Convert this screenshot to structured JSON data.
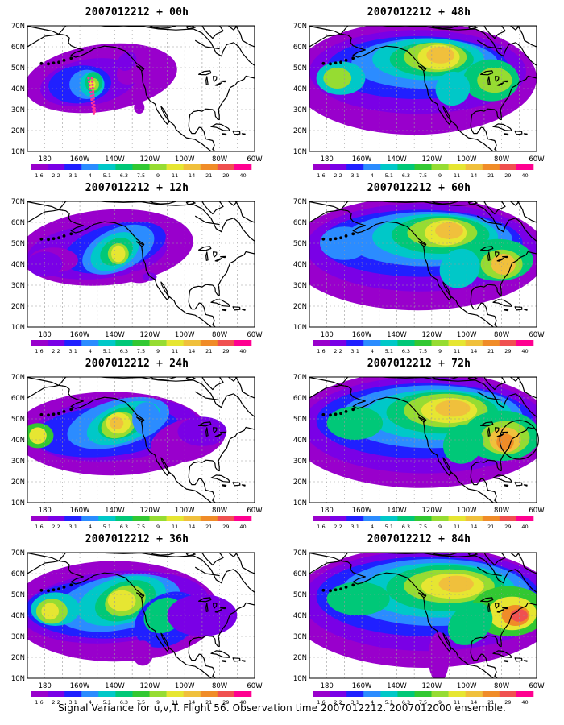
{
  "footer_caption": "Signal Variance for u,v,T. Flight 56. Observation time 2007012212. 2007012000 ensemble.",
  "lat_labels": [
    "70N",
    "60N",
    "50N",
    "40N",
    "30N",
    "20N",
    "10N"
  ],
  "lon_labels": [
    "180",
    "160W",
    "140W",
    "120W",
    "100W",
    "80W",
    "60W"
  ],
  "colorbar": {
    "labels": [
      "1.6",
      "2.2",
      "3.1",
      "4",
      "5.1",
      "6.3",
      "7.5",
      "9",
      "11",
      "14",
      "21",
      "29",
      "40"
    ],
    "colors": [
      "#9900cc",
      "#7a00e6",
      "#2020ff",
      "#2b8cff",
      "#00c8c8",
      "#00c878",
      "#32c832",
      "#96dc32",
      "#e6e632",
      "#f0c03c",
      "#f08c28",
      "#f05050",
      "#ff0090"
    ]
  },
  "panels": [
    {
      "id": "p00",
      "title": "2007012212 + 00h",
      "lead_hours": 0
    },
    {
      "id": "p48",
      "title": "2007012212 + 48h",
      "lead_hours": 48
    },
    {
      "id": "p12",
      "title": "2007012212 + 12h",
      "lead_hours": 12
    },
    {
      "id": "p60",
      "title": "2007012212 + 60h",
      "lead_hours": 60
    },
    {
      "id": "p24",
      "title": "2007012212 + 24h",
      "lead_hours": 24
    },
    {
      "id": "p72",
      "title": "2007012212 + 72h",
      "lead_hours": 72
    },
    {
      "id": "p36",
      "title": "2007012212 + 36h",
      "lead_hours": 36
    },
    {
      "id": "p84",
      "title": "2007012212 + 84h",
      "lead_hours": 84
    }
  ]
}
